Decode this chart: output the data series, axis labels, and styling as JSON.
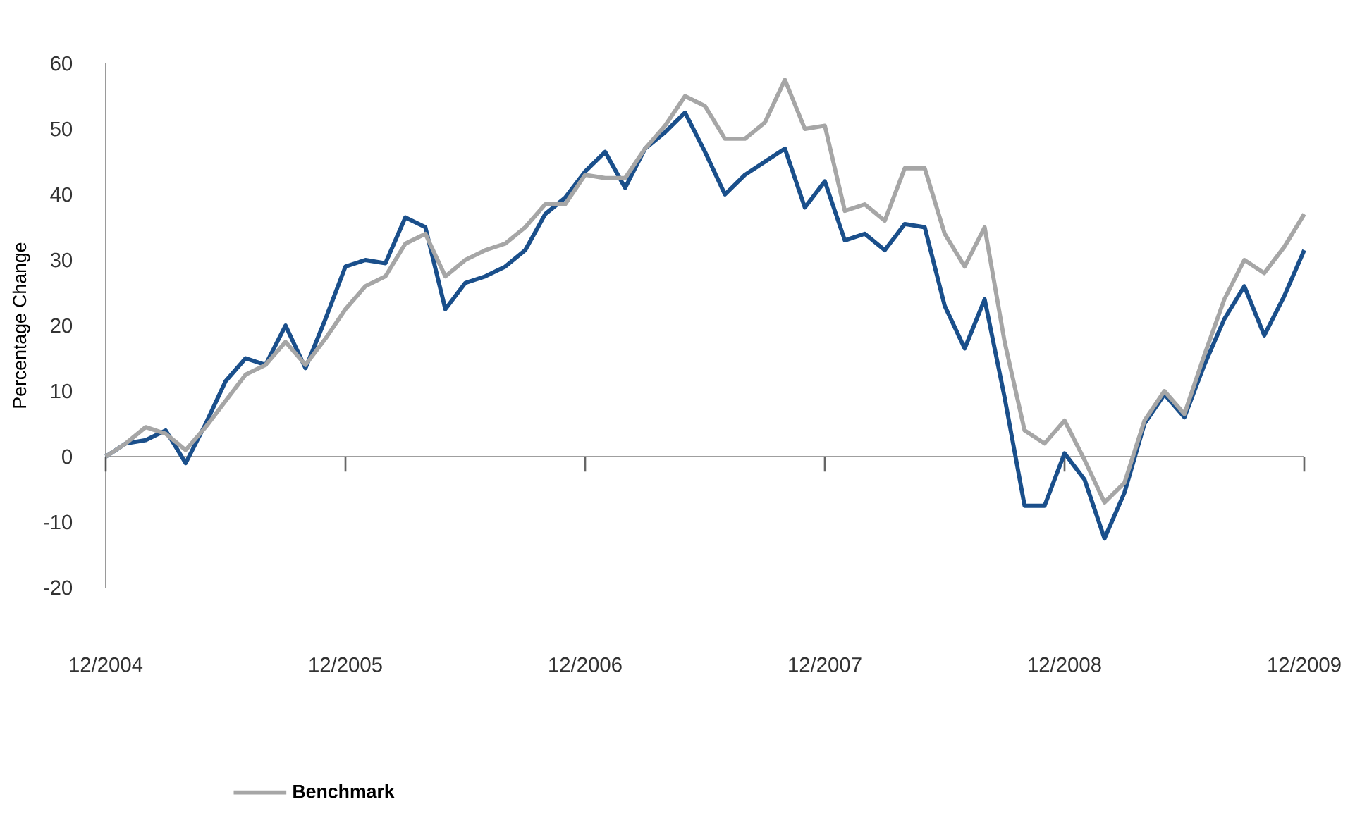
{
  "chart_data": {
    "type": "line",
    "ylabel": "Percentage Change",
    "x": [
      "2004-12",
      "2005-01",
      "2005-02",
      "2005-03",
      "2005-04",
      "2005-05",
      "2005-06",
      "2005-07",
      "2005-08",
      "2005-09",
      "2005-10",
      "2005-11",
      "2005-12",
      "2006-01",
      "2006-02",
      "2006-03",
      "2006-04",
      "2006-05",
      "2006-06",
      "2006-07",
      "2006-08",
      "2006-09",
      "2006-10",
      "2006-11",
      "2006-12",
      "2007-01",
      "2007-02",
      "2007-03",
      "2007-04",
      "2007-05",
      "2007-06",
      "2007-07",
      "2007-08",
      "2007-09",
      "2007-10",
      "2007-11",
      "2007-12",
      "2008-01",
      "2008-02",
      "2008-03",
      "2008-04",
      "2008-05",
      "2008-06",
      "2008-07",
      "2008-08",
      "2008-09",
      "2008-10",
      "2008-11",
      "2008-12",
      "2009-01",
      "2009-02",
      "2009-03",
      "2009-04",
      "2009-05",
      "2009-06",
      "2009-07",
      "2009-08",
      "2009-09",
      "2009-10",
      "2009-11",
      "2009-12"
    ],
    "series": [
      {
        "color": "#1a4f8b",
        "values": [
          0,
          2,
          2.5,
          4,
          -1,
          5,
          11.5,
          15,
          14,
          20,
          13.5,
          21,
          29,
          30,
          29.5,
          36.5,
          35,
          22.5,
          26.5,
          27.5,
          29,
          31.5,
          37,
          39.5,
          43.5,
          46.5,
          41,
          47,
          49.5,
          52.5,
          46.5,
          40,
          43,
          45,
          47,
          38,
          42,
          33,
          34,
          31.5,
          35.5,
          35,
          23,
          16.5,
          24,
          9,
          -7.5,
          -7.5,
          0.5,
          -3.5,
          -12.5,
          -5.5,
          5,
          9.5,
          6,
          14,
          21,
          26,
          18.5,
          24.5,
          31.5
        ]
      },
      {
        "name": "Benchmark",
        "color": "#a6a6a6",
        "values": [
          0,
          2,
          4.5,
          3.5,
          1,
          4.5,
          8.5,
          12.5,
          14,
          17.5,
          14,
          18,
          22.5,
          26,
          27.5,
          32.5,
          34,
          27.5,
          30,
          31.5,
          32.5,
          35,
          38.5,
          38.5,
          43,
          42.5,
          42.5,
          47,
          50.5,
          55,
          53.5,
          48.5,
          48.5,
          51,
          57.5,
          50,
          50.5,
          37.5,
          38.5,
          36,
          44,
          44,
          34,
          29,
          35,
          17.5,
          4,
          2,
          5.5,
          -0.5,
          -7,
          -4,
          5.5,
          10,
          6.5,
          15.5,
          24,
          30,
          28,
          32,
          37
        ]
      }
    ],
    "xlim": [
      "2004-12",
      "2009-12"
    ],
    "xticks": [
      {
        "value": "2004-12",
        "label": "12/2004"
      },
      {
        "value": "2005-12",
        "label": "12/2005"
      },
      {
        "value": "2006-12",
        "label": "12/2006"
      },
      {
        "value": "2007-12",
        "label": "12/2007"
      },
      {
        "value": "2008-12",
        "label": "12/2008"
      },
      {
        "value": "2009-12",
        "label": "12/2009"
      }
    ],
    "ylim": [
      -20,
      60
    ],
    "yticks": [
      -20,
      -10,
      0,
      10,
      20,
      30,
      40,
      50,
      60
    ],
    "legend": "bottom",
    "marker": "none",
    "line_style": "solid"
  }
}
